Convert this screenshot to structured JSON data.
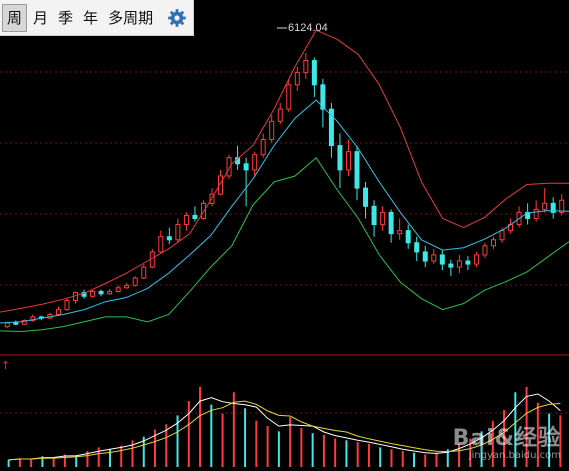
{
  "toolbar": {
    "periods": [
      "周",
      "月",
      "季",
      "年",
      "多周期"
    ],
    "active": "周",
    "settings_icon": "gear-icon"
  },
  "chart_data": {
    "type": "candlestick",
    "price_annotation": "6124.04",
    "upper_band": [
      1860,
      1920,
      1990,
      2070,
      2170,
      2330,
      2500,
      2700,
      2900,
      3150,
      3700,
      4300,
      4600,
      5200,
      5900,
      6500,
      6350,
      6100,
      5600,
      4900,
      4000,
      3400,
      3250,
      3420,
      3720,
      3960,
      3980,
      3980
    ],
    "middle_line": [
      1680,
      1700,
      1760,
      1820,
      1900,
      2030,
      2100,
      2250,
      2500,
      2800,
      3120,
      3600,
      4050,
      4600,
      5050,
      5350,
      5000,
      4550,
      4000,
      3500,
      3050,
      2880,
      2920,
      3060,
      3240,
      3490,
      3530,
      3520
    ],
    "lower_band": [
      1550,
      1540,
      1570,
      1620,
      1700,
      1780,
      1780,
      1700,
      1820,
      2200,
      2600,
      2950,
      3620,
      4000,
      4100,
      4400,
      3870,
      3400,
      2800,
      2350,
      2080,
      1900,
      2000,
      2220,
      2360,
      2520,
      2770,
      3020
    ],
    "candles": [
      {
        "o": 1620,
        "c": 1680,
        "h": 1700,
        "l": 1600
      },
      {
        "o": 1680,
        "c": 1660,
        "h": 1720,
        "l": 1640
      },
      {
        "o": 1660,
        "c": 1720,
        "h": 1740,
        "l": 1650
      },
      {
        "o": 1720,
        "c": 1780,
        "h": 1820,
        "l": 1700
      },
      {
        "o": 1780,
        "c": 1760,
        "h": 1800,
        "l": 1730
      },
      {
        "o": 1760,
        "c": 1820,
        "h": 1850,
        "l": 1750
      },
      {
        "o": 1820,
        "c": 1900,
        "h": 1950,
        "l": 1800
      },
      {
        "o": 1900,
        "c": 2050,
        "h": 2100,
        "l": 1880
      },
      {
        "o": 2050,
        "c": 2180,
        "h": 2200,
        "l": 2000
      },
      {
        "o": 2180,
        "c": 2120,
        "h": 2230,
        "l": 2080
      },
      {
        "o": 2120,
        "c": 2200,
        "h": 2240,
        "l": 2100
      },
      {
        "o": 2200,
        "c": 2160,
        "h": 2230,
        "l": 2120
      },
      {
        "o": 2160,
        "c": 2200,
        "h": 2240,
        "l": 2140
      },
      {
        "o": 2200,
        "c": 2260,
        "h": 2300,
        "l": 2180
      },
      {
        "o": 2260,
        "c": 2300,
        "h": 2340,
        "l": 2240
      },
      {
        "o": 2300,
        "c": 2420,
        "h": 2450,
        "l": 2280
      },
      {
        "o": 2420,
        "c": 2600,
        "h": 2650,
        "l": 2400
      },
      {
        "o": 2600,
        "c": 2850,
        "h": 2900,
        "l": 2580
      },
      {
        "o": 2850,
        "c": 3100,
        "h": 3200,
        "l": 2820
      },
      {
        "o": 3100,
        "c": 3050,
        "h": 3250,
        "l": 2980
      },
      {
        "o": 3050,
        "c": 3300,
        "h": 3400,
        "l": 3000
      },
      {
        "o": 3300,
        "c": 3450,
        "h": 3500,
        "l": 3200
      },
      {
        "o": 3450,
        "c": 3400,
        "h": 3600,
        "l": 3350
      },
      {
        "o": 3400,
        "c": 3650,
        "h": 3700,
        "l": 3380
      },
      {
        "o": 3650,
        "c": 3800,
        "h": 3900,
        "l": 3600
      },
      {
        "o": 3800,
        "c": 4100,
        "h": 4200,
        "l": 3780
      },
      {
        "o": 4100,
        "c": 4400,
        "h": 4450,
        "l": 4050
      },
      {
        "o": 4400,
        "c": 4300,
        "h": 4600,
        "l": 4200
      },
      {
        "o": 4300,
        "c": 4200,
        "h": 4400,
        "l": 3600
      },
      {
        "o": 4200,
        "c": 4450,
        "h": 4500,
        "l": 4100
      },
      {
        "o": 4450,
        "c": 4700,
        "h": 4800,
        "l": 4400
      },
      {
        "o": 4700,
        "c": 5000,
        "h": 5100,
        "l": 4650
      },
      {
        "o": 5000,
        "c": 5200,
        "h": 5300,
        "l": 4950
      },
      {
        "o": 5200,
        "c": 5600,
        "h": 5700,
        "l": 5150
      },
      {
        "o": 5600,
        "c": 5800,
        "h": 5900,
        "l": 5500
      },
      {
        "o": 5800,
        "c": 6000,
        "h": 6124,
        "l": 5700
      },
      {
        "o": 6000,
        "c": 5600,
        "h": 6050,
        "l": 5400
      },
      {
        "o": 5600,
        "c": 5200,
        "h": 5700,
        "l": 4900
      },
      {
        "o": 5200,
        "c": 4600,
        "h": 5300,
        "l": 4400
      },
      {
        "o": 4600,
        "c": 4200,
        "h": 4800,
        "l": 3900
      },
      {
        "o": 4200,
        "c": 4500,
        "h": 4700,
        "l": 4100
      },
      {
        "o": 4500,
        "c": 3900,
        "h": 4600,
        "l": 3700
      },
      {
        "o": 3900,
        "c": 3600,
        "h": 4000,
        "l": 3400
      },
      {
        "o": 3600,
        "c": 3300,
        "h": 3700,
        "l": 3100
      },
      {
        "o": 3300,
        "c": 3500,
        "h": 3600,
        "l": 3200
      },
      {
        "o": 3500,
        "c": 3150,
        "h": 3550,
        "l": 3000
      },
      {
        "o": 3150,
        "c": 3200,
        "h": 3400,
        "l": 3050
      },
      {
        "o": 3200,
        "c": 3000,
        "h": 3300,
        "l": 2900
      },
      {
        "o": 3000,
        "c": 2850,
        "h": 3100,
        "l": 2700
      },
      {
        "o": 2850,
        "c": 2700,
        "h": 2950,
        "l": 2600
      },
      {
        "o": 2700,
        "c": 2800,
        "h": 2900,
        "l": 2650
      },
      {
        "o": 2800,
        "c": 2650,
        "h": 2880,
        "l": 2550
      },
      {
        "o": 2650,
        "c": 2600,
        "h": 2720,
        "l": 2450
      },
      {
        "o": 2600,
        "c": 2700,
        "h": 2800,
        "l": 2500
      },
      {
        "o": 2700,
        "c": 2650,
        "h": 2780,
        "l": 2550
      },
      {
        "o": 2650,
        "c": 2800,
        "h": 2850,
        "l": 2600
      },
      {
        "o": 2800,
        "c": 2950,
        "h": 3000,
        "l": 2750
      },
      {
        "o": 2950,
        "c": 3050,
        "h": 3100,
        "l": 2900
      },
      {
        "o": 3050,
        "c": 3200,
        "h": 3250,
        "l": 3000
      },
      {
        "o": 3200,
        "c": 3300,
        "h": 3400,
        "l": 3150
      },
      {
        "o": 3300,
        "c": 3500,
        "h": 3600,
        "l": 3250
      },
      {
        "o": 3500,
        "c": 3400,
        "h": 3650,
        "l": 3300
      },
      {
        "o": 3400,
        "c": 3550,
        "h": 3700,
        "l": 3350
      },
      {
        "o": 3550,
        "c": 3650,
        "h": 3900,
        "l": 3500
      },
      {
        "o": 3650,
        "c": 3500,
        "h": 3750,
        "l": 3400
      },
      {
        "o": 3500,
        "c": 3700,
        "h": 3800,
        "l": 3450
      }
    ],
    "volume": [
      8,
      10,
      9,
      12,
      11,
      14,
      13,
      18,
      22,
      20,
      24,
      30,
      34,
      42,
      48,
      58,
      74,
      90,
      70,
      60,
      84,
      66,
      52,
      46,
      40,
      56,
      44,
      38,
      36,
      32,
      30,
      28,
      26,
      22,
      20,
      18,
      16,
      14,
      16,
      20,
      26,
      32,
      40,
      52,
      64,
      84,
      90,
      72,
      60,
      58
    ]
  },
  "watermark": {
    "main": "Bai&经验",
    "sub": "jingyan.baidu.com"
  }
}
